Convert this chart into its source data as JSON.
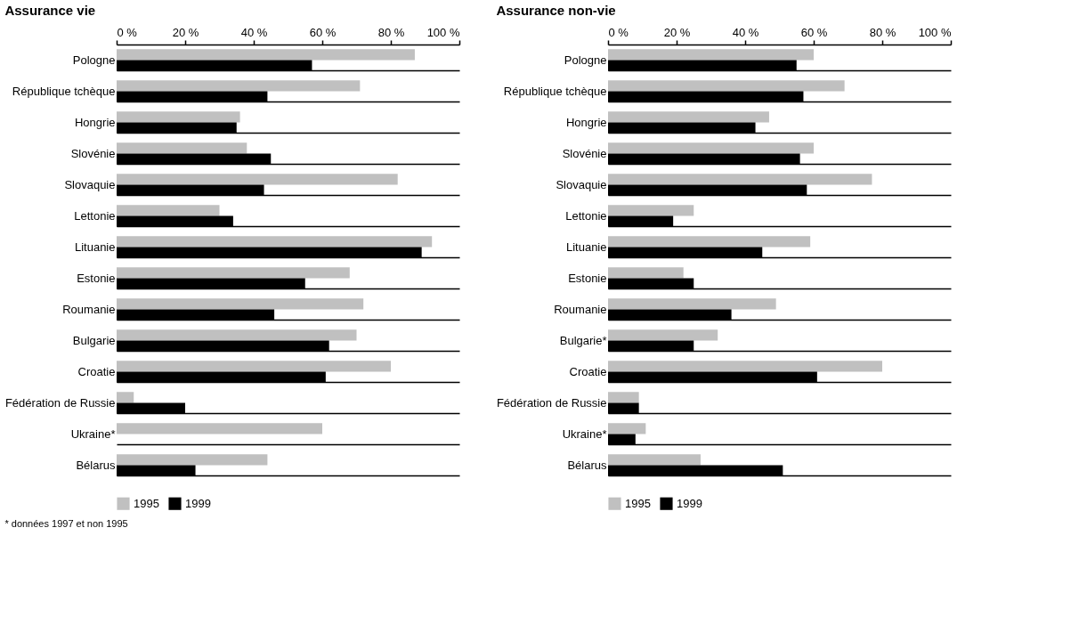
{
  "chart_data": [
    {
      "type": "bar",
      "orientation": "horizontal",
      "title": "Assurance vie",
      "categories": [
        "Pologne",
        "République tchèque",
        "Hongrie",
        "Slovénie",
        "Slovaquie",
        "Lettonie",
        "Lituanie",
        "Estonie",
        "Roumanie",
        "Bulgarie",
        "Croatie",
        "Fédération de Russie",
        "Ukraine*",
        "Bélarus"
      ],
      "series": [
        {
          "name": "1995",
          "color": "#c0c0c0",
          "values": [
            87,
            71,
            36,
            38,
            82,
            30,
            92,
            68,
            72,
            70,
            80,
            5,
            60,
            44
          ]
        },
        {
          "name": "1999",
          "color": "#000000",
          "values": [
            57,
            44,
            35,
            45,
            43,
            34,
            89,
            55,
            46,
            62,
            61,
            20,
            null,
            23
          ]
        }
      ],
      "xlim": [
        0,
        100
      ],
      "xticks": [
        {
          "value": 0,
          "label": "0 %"
        },
        {
          "value": 20,
          "label": "20 %"
        },
        {
          "value": 40,
          "label": "40 %"
        },
        {
          "value": 60,
          "label": "60 %"
        },
        {
          "value": 80,
          "label": "80 %"
        },
        {
          "value": 100,
          "label": "100 %"
        }
      ],
      "grid": "y",
      "legend": "bottom",
      "annotations": [
        "* données 1997 et non 1995"
      ]
    },
    {
      "type": "bar",
      "orientation": "horizontal",
      "title": "Assurance non-vie",
      "categories": [
        "Pologne",
        "République tchèque",
        "Hongrie",
        "Slovénie",
        "Slovaquie",
        "Lettonie",
        "Lituanie",
        "Estonie",
        "Roumanie",
        "Bulgarie*",
        "Croatie",
        "Fédération de Russie",
        "Ukraine*",
        "Bélarus"
      ],
      "series": [
        {
          "name": "1995",
          "color": "#c0c0c0",
          "values": [
            60,
            69,
            47,
            60,
            77,
            25,
            59,
            22,
            49,
            32,
            80,
            9,
            11,
            27
          ]
        },
        {
          "name": "1999",
          "color": "#000000",
          "values": [
            55,
            57,
            43,
            56,
            58,
            19,
            45,
            25,
            36,
            25,
            61,
            9,
            8,
            51
          ]
        }
      ],
      "xlim": [
        0,
        100
      ],
      "xticks": [
        {
          "value": 0,
          "label": "0 %"
        },
        {
          "value": 20,
          "label": "20 %"
        },
        {
          "value": 40,
          "label": "40 %"
        },
        {
          "value": 60,
          "label": "60 %"
        },
        {
          "value": 80,
          "label": "80 %"
        },
        {
          "value": 100,
          "label": "100 %"
        }
      ],
      "grid": "y",
      "legend": "bottom"
    }
  ]
}
